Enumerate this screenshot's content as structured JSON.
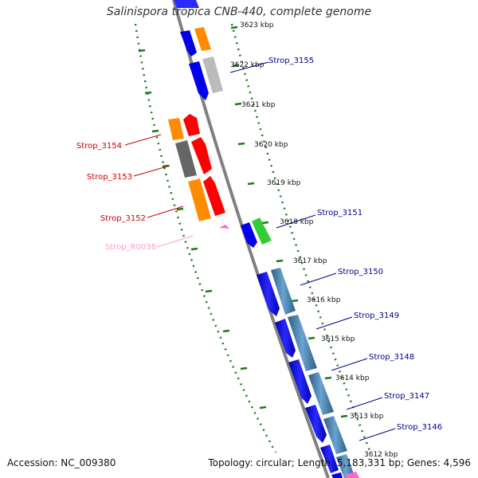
{
  "title": "Salinispora tropica CNB-440, complete genome",
  "footer": {
    "accession": "Accession: NC_009380",
    "topology": "Topology: circular; Length: 5,183,331 bp; Genes: 4,596"
  },
  "colors": {
    "backbone": "#808080",
    "tick_dots": "#1a7a1a",
    "forward_label": "#00008b",
    "reverse_label": "#cc0000",
    "rna_label": "#ff99cc",
    "gene_blue": "#0000ee",
    "gene_steel": "#4682b4",
    "gene_gray": "#bbbbbb",
    "gene_orange": "#ff8c00",
    "gene_red": "#ff0000",
    "gene_dark": "#666666",
    "gene_green": "#33cc33",
    "gene_pink": "#ff66cc"
  },
  "ruler_labels": [
    "3623 kbp",
    "3622 kbp",
    "3621 kbp",
    "3620 kbp",
    "3619 kbp",
    "3618 kbp",
    "3617 kbp",
    "3616 kbp",
    "3615 kbp",
    "3614 kbp",
    "3613 kbp",
    "3612 kbp"
  ],
  "gene_labels": {
    "strop_3155": "Strop_3155",
    "strop_3154": "Strop_3154",
    "strop_3153": "Strop_3153",
    "strop_3152": "Strop_3152",
    "strop_r0036": "Strop_R0036",
    "strop_3151": "Strop_3151",
    "strop_3150": "Strop_3150",
    "strop_3149": "Strop_3149",
    "strop_3148": "Strop_3148",
    "strop_3147": "Strop_3147",
    "strop_3146": "Strop_3146"
  }
}
